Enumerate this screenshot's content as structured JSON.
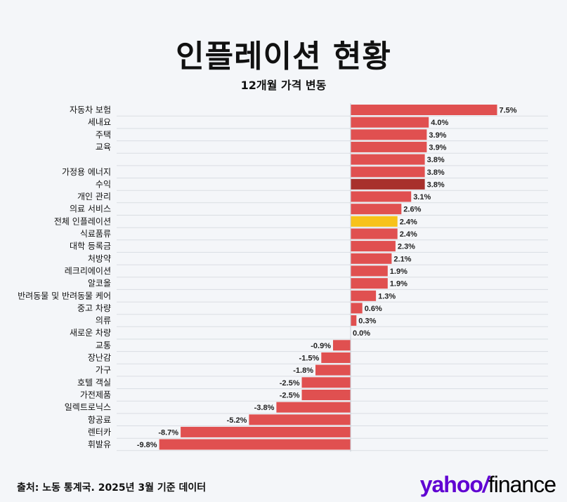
{
  "title": "인플레이션 현황",
  "subtitle": "12개월 가격 변동",
  "source": "출처: 노동 통계국. 2025년 3월 기준 데이터",
  "logo": {
    "yahoo": "yahoo",
    "bang": "/",
    "finance": "finance"
  },
  "colors": {
    "default_bar": "#e05050",
    "highlight_bar": "#a8302c",
    "overall_bar": "#f7c21a",
    "grid": "#d9dde3",
    "background": "#f4f6f9"
  },
  "chart_data": {
    "type": "bar",
    "orientation": "horizontal",
    "title": "인플레이션 현황",
    "subtitle": "12개월 가격 변동",
    "unit": "%",
    "grid": true,
    "categories": [
      "자동차 보험",
      "세내요",
      "주택",
      "교육",
      "",
      "가정용 에너지",
      "수익",
      "개인 관리",
      "의료 서비스",
      "전체 인플레이션",
      "식료품류",
      "대학 등록금",
      "처방약",
      "레크리에이션",
      "알코올",
      "반려동물 및 반려동물 케어",
      "중고 차량",
      "의류",
      "새로운 차량",
      "교통",
      "장난감",
      "가구",
      "호텔 객실",
      "가전제품",
      "일렉트로닉스",
      "항공료",
      "렌터카",
      "휘발유"
    ],
    "values": [
      7.5,
      4.0,
      3.9,
      3.9,
      3.8,
      3.8,
      3.8,
      3.1,
      2.6,
      2.4,
      2.4,
      2.3,
      2.1,
      1.9,
      1.9,
      1.3,
      0.6,
      0.3,
      0.0,
      -0.9,
      -1.5,
      -1.8,
      -2.5,
      -2.5,
      -3.8,
      -5.2,
      -8.7,
      -9.8
    ],
    "value_labels": [
      "7.5%",
      "4.0%",
      "3.9%",
      "3.9%",
      "3.8%",
      "3.8%",
      "3.8%",
      "3.1%",
      "2.6%",
      "2.4%",
      "2.4%",
      "2.3%",
      "2.1%",
      "1.9%",
      "1.9%",
      "1.3%",
      "0.6%",
      "0.3%",
      "0.0%",
      "-0.9%",
      "-1.5%",
      "-1.8%",
      "-2.5%",
      "-2.5%",
      "-3.8%",
      "-5.2%",
      "-8.7%",
      "-9.8%"
    ],
    "highlight": {
      "수익": "#a8302c",
      "전체 인플레이션": "#f7c21a"
    }
  }
}
